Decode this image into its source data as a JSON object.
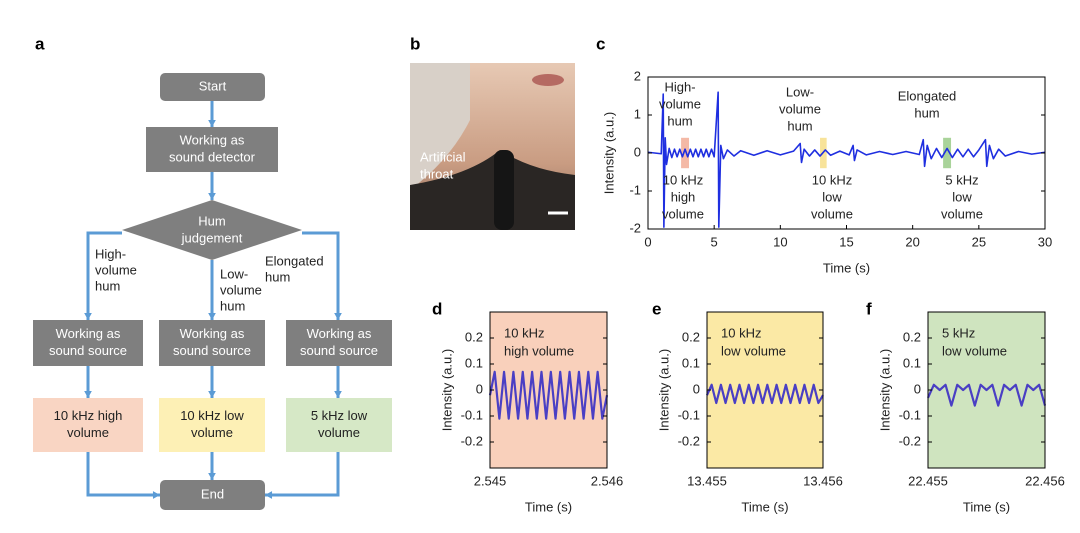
{
  "flowchart": {
    "panel": "a",
    "nodes": [
      {
        "lines": [
          "Start"
        ]
      },
      {
        "lines": [
          "Working as",
          "sound detector"
        ]
      },
      {
        "lines": [
          "Hum",
          "judgement"
        ]
      },
      {
        "lines": [
          "Working as",
          "sound source"
        ]
      },
      {
        "lines": [
          "Working as",
          "sound source"
        ]
      },
      {
        "lines": [
          "Working as",
          "sound source"
        ]
      },
      {
        "lines": [
          "10 kHz high",
          "volume"
        ]
      },
      {
        "lines": [
          "10 kHz low",
          "volume"
        ]
      },
      {
        "lines": [
          "5 kHz low",
          "volume"
        ]
      },
      {
        "lines": [
          "End"
        ]
      }
    ],
    "edge_labels": [
      {
        "lines": [
          "High-",
          "volume",
          "hum"
        ]
      },
      {
        "lines": [
          "Low-",
          "volume",
          "hum"
        ]
      },
      {
        "lines": [
          "Elongated",
          "hum"
        ]
      }
    ]
  },
  "photo": {
    "panel": "b",
    "lines": [
      "Artificial",
      "throat"
    ]
  },
  "chart_data": [
    {
      "type": "line",
      "panel": "c",
      "x_label": "Time (s)",
      "y_label": "Intensity (a.u.)",
      "xlim": [
        0,
        30
      ],
      "xticks": [
        0,
        5,
        10,
        15,
        20,
        25,
        30
      ],
      "ylim": [
        -2,
        2
      ],
      "yticks": [
        -2,
        -1,
        0,
        1,
        2
      ],
      "highlights": [
        {
          "x": [
            2.5,
            3.1
          ],
          "y": [
            -0.4,
            0.4
          ],
          "color": "#f4b9a6"
        },
        {
          "x": [
            13,
            13.5
          ],
          "y": [
            -0.4,
            0.4
          ],
          "color": "#f8e39a"
        },
        {
          "x": [
            22.3,
            22.9
          ],
          "y": [
            -0.4,
            0.4
          ],
          "color": "#a9d39a"
        }
      ],
      "annotations": [
        {
          "lines": [
            "High-",
            "volume",
            "hum"
          ]
        },
        {
          "lines": [
            "10 kHz",
            "high",
            "volume"
          ]
        },
        {
          "lines": [
            "Low-",
            "volume",
            "hum"
          ]
        },
        {
          "lines": [
            "10 kHz",
            "low",
            "volume"
          ]
        },
        {
          "lines": [
            "Elongated",
            "hum"
          ]
        },
        {
          "lines": [
            "5 kHz",
            "low",
            "volume"
          ]
        }
      ],
      "color": "#1f2fe0",
      "x": [
        0,
        1,
        1.15,
        1.2,
        1.3,
        1.4,
        1.6,
        1.8,
        2,
        2.2,
        2.4,
        2.6,
        2.8,
        3,
        3.2,
        3.4,
        3.6,
        3.8,
        4,
        4.2,
        4.4,
        4.6,
        4.8,
        5,
        5.3,
        5.35,
        5.5,
        5.7,
        6,
        6.5,
        7,
        8,
        9,
        10,
        11,
        11.5,
        11.6,
        11.8,
        12.2,
        12.6,
        13,
        13.4,
        13.8,
        14.5,
        15.2,
        15.5,
        15.6,
        15.8,
        16.5,
        17.5,
        18.5,
        19.5,
        20.5,
        20.8,
        20.9,
        21.1,
        21.4,
        21.8,
        22.2,
        22.6,
        23,
        23.4,
        23.8,
        24.2,
        24.6,
        25,
        25.5,
        25.6,
        25.8,
        26.1,
        26.5,
        27,
        28,
        29,
        30
      ],
      "values": [
        0.02,
        -0.02,
        1.55,
        -1.95,
        0.4,
        -0.3,
        0.12,
        -0.12,
        0.1,
        -0.1,
        0.1,
        -0.1,
        0.1,
        -0.1,
        0.1,
        -0.1,
        0.1,
        -0.1,
        0.1,
        -0.1,
        0.1,
        -0.1,
        0.1,
        -0.1,
        1.6,
        -1.95,
        0.2,
        -0.15,
        0.08,
        -0.08,
        0.06,
        -0.06,
        0.06,
        -0.05,
        0.05,
        0.25,
        -0.25,
        0.1,
        -0.08,
        0.08,
        -0.08,
        0.08,
        -0.06,
        0.05,
        -0.05,
        0.2,
        -0.2,
        0.08,
        -0.05,
        0.04,
        -0.04,
        0.04,
        -0.04,
        0.35,
        -0.35,
        0.2,
        -0.15,
        0.12,
        -0.12,
        0.12,
        -0.12,
        0.1,
        -0.1,
        0.1,
        -0.1,
        0.08,
        0.35,
        -0.35,
        0.2,
        -0.15,
        0.1,
        -0.08,
        0.04,
        -0.03,
        0.02
      ]
    },
    {
      "type": "line",
      "panel": "d",
      "x_label": "Time (s)",
      "y_label": "Intensity (a.u.)",
      "background": "#f9d0bb",
      "annotations": [
        {
          "lines": [
            "10 kHz",
            "high volume"
          ]
        }
      ],
      "xlim": [
        2.545,
        2.546
      ],
      "xticks": [
        2.545,
        2.546
      ],
      "ylim": [
        -0.3,
        0.3
      ],
      "yticks": [
        -0.2,
        -0.1,
        0,
        0.1,
        0.2
      ],
      "color": "#4a3fc4",
      "x": [
        2.545,
        2.54504,
        2.54508,
        2.54512,
        2.54516,
        2.5452,
        2.54524,
        2.54528,
        2.54532,
        2.54536,
        2.5454,
        2.54544,
        2.54548,
        2.54552,
        2.54556,
        2.5456,
        2.54564,
        2.54568,
        2.54572,
        2.54576,
        2.5458,
        2.54584,
        2.54588,
        2.54592,
        2.54596,
        2.546
      ],
      "values": [
        -0.02,
        0.07,
        -0.11,
        0.07,
        -0.11,
        0.07,
        -0.11,
        0.07,
        -0.11,
        0.07,
        -0.11,
        0.07,
        -0.11,
        0.07,
        -0.11,
        0.07,
        -0.11,
        0.07,
        -0.11,
        0.07,
        -0.11,
        0.07,
        -0.11,
        0.07,
        -0.11,
        -0.02
      ]
    },
    {
      "type": "line",
      "panel": "e",
      "x_label": "Time (s)",
      "y_label": "Intensity (a.u.)",
      "background": "#fbe9a5",
      "annotations": [
        {
          "lines": [
            "10 kHz",
            "low volume"
          ]
        }
      ],
      "xlim": [
        13.455,
        13.456
      ],
      "xticks": [
        13.455,
        13.456
      ],
      "ylim": [
        -0.3,
        0.3
      ],
      "yticks": [
        -0.2,
        -0.1,
        0,
        0.1,
        0.2
      ],
      "color": "#4a3fc4",
      "x": [
        13.455,
        13.45504,
        13.45508,
        13.45512,
        13.45516,
        13.4552,
        13.45524,
        13.45528,
        13.45532,
        13.45536,
        13.4554,
        13.45544,
        13.45548,
        13.45552,
        13.45556,
        13.4556,
        13.45564,
        13.45568,
        13.45572,
        13.45576,
        13.4558,
        13.45584,
        13.45588,
        13.45592,
        13.45596,
        13.456
      ],
      "values": [
        -0.02,
        0.02,
        -0.05,
        0.02,
        -0.05,
        0.02,
        -0.05,
        0.02,
        -0.05,
        0.02,
        -0.05,
        0.02,
        -0.05,
        0.02,
        -0.05,
        0.02,
        -0.05,
        0.02,
        -0.05,
        0.02,
        -0.05,
        0.02,
        -0.05,
        0.02,
        -0.05,
        -0.02
      ]
    },
    {
      "type": "line",
      "panel": "f",
      "x_label": "Time (s)",
      "y_label": "Intensity (a.u.)",
      "background": "#cfe4bf",
      "annotations": [
        {
          "lines": [
            "5 kHz",
            "low volume"
          ]
        }
      ],
      "xlim": [
        22.455,
        22.456
      ],
      "xticks": [
        22.455,
        22.456
      ],
      "ylim": [
        -0.3,
        0.3
      ],
      "yticks": [
        -0.2,
        -0.1,
        0,
        0.1,
        0.2
      ],
      "color": "#4a3fc4",
      "x": [
        22.455,
        22.45505,
        22.4551,
        22.45515,
        22.4552,
        22.45525,
        22.4553,
        22.45535,
        22.4554,
        22.45545,
        22.4555,
        22.45555,
        22.4556,
        22.45565,
        22.4557,
        22.45575,
        22.4558,
        22.45585,
        22.4559,
        22.45595,
        22.456
      ],
      "values": [
        -0.03,
        0.02,
        0,
        0.02,
        -0.06,
        0.02,
        0,
        0.02,
        -0.06,
        0.02,
        0,
        0.02,
        -0.06,
        0.02,
        0,
        0.02,
        -0.06,
        0.02,
        0,
        0.02,
        -0.06
      ]
    }
  ]
}
